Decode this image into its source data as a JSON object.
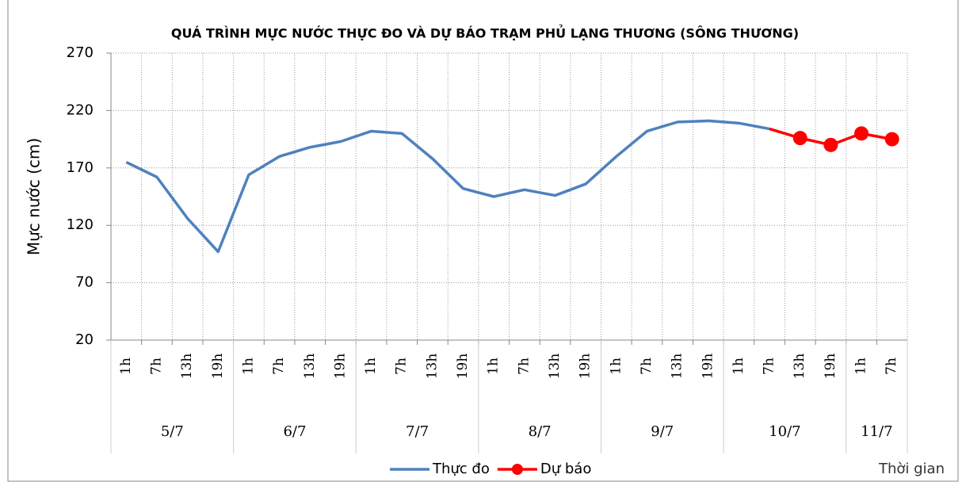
{
  "chart_data": {
    "type": "line",
    "title": "QUÁ TRÌNH MỰC NƯỚC THỰC ĐO VÀ DỰ BÁO TRẠM PHỦ LẠNG THƯƠNG (SÔNG THƯƠNG)",
    "y_label": "Mực nước (cm)",
    "x_label": "Thời gian",
    "categories": [
      "1h",
      "7h",
      "13h",
      "19h",
      "1h",
      "7h",
      "13h",
      "19h",
      "1h",
      "7h",
      "13h",
      "19h",
      "1h",
      "7h",
      "13h",
      "19h",
      "1h",
      "7h",
      "13h",
      "19h",
      "1h",
      "7h",
      "13h",
      "19h",
      "1h",
      "7h"
    ],
    "category_groups": [
      "5/7",
      "6/7",
      "7/7",
      "8/7",
      "9/7",
      "10/7",
      "11/7"
    ],
    "series": [
      {
        "name": "Thực đo",
        "color": "#4f81bd",
        "marker": false,
        "values": [
          175,
          162,
          126,
          97,
          164,
          180,
          188,
          193,
          202,
          200,
          178,
          152,
          145,
          151,
          146,
          156,
          180,
          202,
          210,
          211,
          209,
          204,
          null,
          null,
          null,
          null
        ]
      },
      {
        "name": "Dự báo",
        "color": "#ff0000",
        "marker": true,
        "values": [
          null,
          null,
          null,
          null,
          null,
          null,
          null,
          null,
          null,
          null,
          null,
          null,
          null,
          null,
          null,
          null,
          null,
          null,
          null,
          null,
          null,
          204,
          196,
          190,
          200,
          195
        ]
      }
    ],
    "ylim": [
      20,
      270
    ],
    "yticks": [
      20,
      70,
      120,
      170,
      220,
      270
    ],
    "grid": true
  }
}
